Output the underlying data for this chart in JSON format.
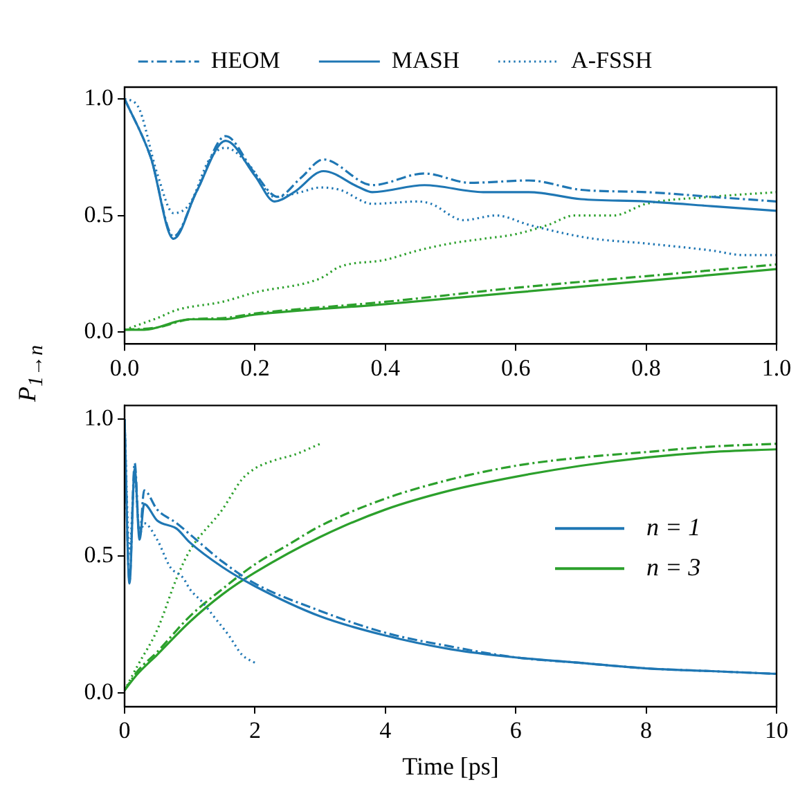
{
  "chart_data": [
    {
      "type": "line",
      "ylabel": "P$_{1→n}$",
      "legend": "top",
      "xlim": [
        0,
        1
      ],
      "xticks": [
        {
          "value": 0,
          "label": "0.0"
        },
        {
          "value": 0.2,
          "label": "0.2"
        },
        {
          "value": 0.4,
          "label": "0.4"
        },
        {
          "value": 0.6,
          "label": "0.6"
        },
        {
          "value": 0.8,
          "label": "0.8"
        },
        {
          "value": 1,
          "label": "1.0"
        }
      ],
      "ylim": [
        -0.05,
        1.05
      ],
      "yticks": [
        {
          "value": 0,
          "label": "0.0"
        },
        {
          "value": 0.5,
          "label": "0.5"
        },
        {
          "value": 1,
          "label": "1.0"
        }
      ],
      "series": [
        {
          "name": "HEOM",
          "color": "#1f77b4",
          "line_style": "dashdot",
          "x": [
            0,
            0.04,
            0.075,
            0.11,
            0.155,
            0.2,
            0.235,
            0.27,
            0.305,
            0.38,
            0.46,
            0.53,
            0.62,
            0.7,
            0.8,
            0.9,
            1.0
          ],
          "values": [
            1.0,
            0.75,
            0.41,
            0.6,
            0.84,
            0.68,
            0.58,
            0.66,
            0.74,
            0.63,
            0.68,
            0.64,
            0.65,
            0.61,
            0.6,
            0.58,
            0.56
          ]
        },
        {
          "name": "MASH",
          "color": "#1f77b4",
          "line_style": "solid",
          "x": [
            0,
            0.04,
            0.075,
            0.11,
            0.155,
            0.2,
            0.23,
            0.26,
            0.305,
            0.36,
            0.38,
            0.46,
            0.55,
            0.62,
            0.7,
            0.8,
            0.9,
            1.0
          ],
          "values": [
            1.0,
            0.75,
            0.4,
            0.6,
            0.82,
            0.67,
            0.56,
            0.6,
            0.69,
            0.62,
            0.6,
            0.63,
            0.6,
            0.6,
            0.57,
            0.56,
            0.54,
            0.52
          ]
        },
        {
          "name": "A-FSSH",
          "color": "#1f77b4",
          "line_style": "dotted",
          "x": [
            0,
            0.02,
            0.05,
            0.075,
            0.1,
            0.13,
            0.155,
            0.19,
            0.23,
            0.27,
            0.3,
            0.33,
            0.38,
            0.45,
            0.47,
            0.52,
            0.57,
            0.62,
            0.68,
            0.72,
            0.8,
            0.9,
            0.95,
            1.0
          ],
          "values": [
            1.0,
            0.97,
            0.68,
            0.51,
            0.55,
            0.74,
            0.79,
            0.72,
            0.58,
            0.6,
            0.62,
            0.61,
            0.55,
            0.56,
            0.55,
            0.48,
            0.5,
            0.46,
            0.42,
            0.4,
            0.38,
            0.35,
            0.33,
            0.33
          ]
        },
        {
          "color": "#2ca02c",
          "line_style": "dashdot",
          "x": [
            0,
            0.05,
            0.1,
            0.15,
            0.2,
            0.4,
            0.6,
            0.8,
            1.0
          ],
          "values": [
            0.01,
            0.02,
            0.055,
            0.06,
            0.08,
            0.13,
            0.19,
            0.24,
            0.29
          ]
        },
        {
          "color": "#2ca02c",
          "line_style": "solid",
          "x": [
            0,
            0.03,
            0.1,
            0.15,
            0.2,
            0.4,
            0.6,
            0.8,
            1.0
          ],
          "values": [
            0.01,
            0.01,
            0.055,
            0.055,
            0.075,
            0.12,
            0.17,
            0.22,
            0.27
          ]
        },
        {
          "color": "#2ca02c",
          "line_style": "dotted",
          "x": [
            0,
            0.02,
            0.05,
            0.08,
            0.15,
            0.2,
            0.3,
            0.33,
            0.4,
            0.45,
            0.5,
            0.55,
            0.6,
            0.65,
            0.69,
            0.75,
            0.8,
            0.9,
            1.0
          ],
          "values": [
            0.01,
            0.03,
            0.06,
            0.095,
            0.13,
            0.17,
            0.23,
            0.28,
            0.31,
            0.35,
            0.38,
            0.4,
            0.42,
            0.46,
            0.5,
            0.5,
            0.55,
            0.58,
            0.6
          ]
        }
      ]
    },
    {
      "type": "line",
      "xlabel": "Time [ps]",
      "legend": "right",
      "xlim": [
        0,
        10
      ],
      "xticks": [
        0,
        2,
        4,
        6,
        8,
        10
      ],
      "ylim": [
        -0.05,
        1.05
      ],
      "yticks": [
        {
          "value": 0,
          "label": "0.0"
        },
        {
          "value": 0.5,
          "label": "0.5"
        },
        {
          "value": 1,
          "label": "1.0"
        }
      ],
      "series": [
        {
          "color": "#1f77b4",
          "line_style": "dashdot",
          "x": [
            0,
            0.075,
            0.155,
            0.23,
            0.3,
            0.5,
            0.8,
            1,
            1.5,
            2,
            3,
            4,
            5,
            6,
            7,
            8,
            9,
            10
          ],
          "values": [
            1.0,
            0.41,
            0.84,
            0.57,
            0.74,
            0.67,
            0.62,
            0.58,
            0.48,
            0.4,
            0.3,
            0.22,
            0.17,
            0.13,
            0.11,
            0.09,
            0.08,
            0.07
          ]
        },
        {
          "name": "n = 1",
          "color": "#1f77b4",
          "line_style": "solid",
          "x": [
            0,
            0.075,
            0.155,
            0.23,
            0.3,
            0.5,
            0.8,
            1,
            1.5,
            2,
            3,
            4,
            5,
            6,
            7,
            8,
            9,
            10
          ],
          "values": [
            1.0,
            0.4,
            0.82,
            0.56,
            0.69,
            0.63,
            0.6,
            0.55,
            0.46,
            0.39,
            0.28,
            0.21,
            0.16,
            0.13,
            0.11,
            0.09,
            0.08,
            0.07
          ]
        },
        {
          "color": "#1f77b4",
          "line_style": "dotted",
          "x": [
            0,
            0.075,
            0.155,
            0.23,
            0.3,
            0.5,
            0.7,
            0.9,
            1,
            1.2,
            1.4,
            1.6,
            1.8,
            2
          ],
          "values": [
            1.0,
            0.51,
            0.79,
            0.58,
            0.62,
            0.56,
            0.46,
            0.42,
            0.38,
            0.33,
            0.27,
            0.21,
            0.14,
            0.11
          ]
        },
        {
          "color": "#2ca02c",
          "line_style": "dashdot",
          "x": [
            0,
            0.2,
            0.5,
            1,
            1.5,
            2,
            2.5,
            3,
            4,
            5,
            6,
            7,
            8,
            9,
            10
          ],
          "values": [
            0.01,
            0.08,
            0.15,
            0.28,
            0.38,
            0.47,
            0.54,
            0.61,
            0.71,
            0.78,
            0.83,
            0.86,
            0.88,
            0.9,
            0.91
          ]
        },
        {
          "name": "n = 3",
          "color": "#2ca02c",
          "line_style": "solid",
          "x": [
            0,
            0.2,
            0.5,
            1,
            1.5,
            2,
            3,
            4,
            5,
            6,
            7,
            8,
            9,
            10
          ],
          "values": [
            0.01,
            0.07,
            0.14,
            0.26,
            0.36,
            0.44,
            0.57,
            0.67,
            0.74,
            0.79,
            0.83,
            0.86,
            0.88,
            0.89
          ]
        },
        {
          "color": "#2ca02c",
          "line_style": "dotted",
          "x": [
            0,
            0.2,
            0.5,
            0.8,
            1,
            1.5,
            1.8,
            2,
            2.3,
            2.6,
            3
          ],
          "values": [
            0.01,
            0.1,
            0.23,
            0.42,
            0.52,
            0.67,
            0.78,
            0.82,
            0.85,
            0.87,
            0.91
          ]
        }
      ]
    }
  ]
}
